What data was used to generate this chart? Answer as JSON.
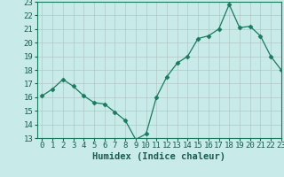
{
  "x": [
    0,
    1,
    2,
    3,
    4,
    5,
    6,
    7,
    8,
    9,
    10,
    11,
    12,
    13,
    14,
    15,
    16,
    17,
    18,
    19,
    20,
    21,
    22,
    23
  ],
  "y": [
    16.1,
    16.6,
    17.3,
    16.8,
    16.1,
    15.6,
    15.5,
    14.9,
    14.3,
    12.9,
    13.3,
    16.0,
    17.5,
    18.5,
    19.0,
    20.3,
    20.5,
    21.0,
    22.8,
    21.1,
    21.2,
    20.5,
    19.0,
    18.0
  ],
  "line_color": "#1a7a5e",
  "marker": "D",
  "marker_size": 2.5,
  "bg_color": "#c8eae8",
  "grid_color": "#b0c8c8",
  "xlabel": "Humidex (Indice chaleur)",
  "xlabel_color": "#1a5c4e",
  "xlabel_fontsize": 7.5,
  "tick_color": "#1a5c4e",
  "tick_fontsize": 6.5,
  "ylim": [
    13,
    23
  ],
  "xlim": [
    -0.5,
    23
  ],
  "yticks": [
    13,
    14,
    15,
    16,
    17,
    18,
    19,
    20,
    21,
    22,
    23
  ],
  "xticks": [
    0,
    1,
    2,
    3,
    4,
    5,
    6,
    7,
    8,
    9,
    10,
    11,
    12,
    13,
    14,
    15,
    16,
    17,
    18,
    19,
    20,
    21,
    22,
    23
  ]
}
